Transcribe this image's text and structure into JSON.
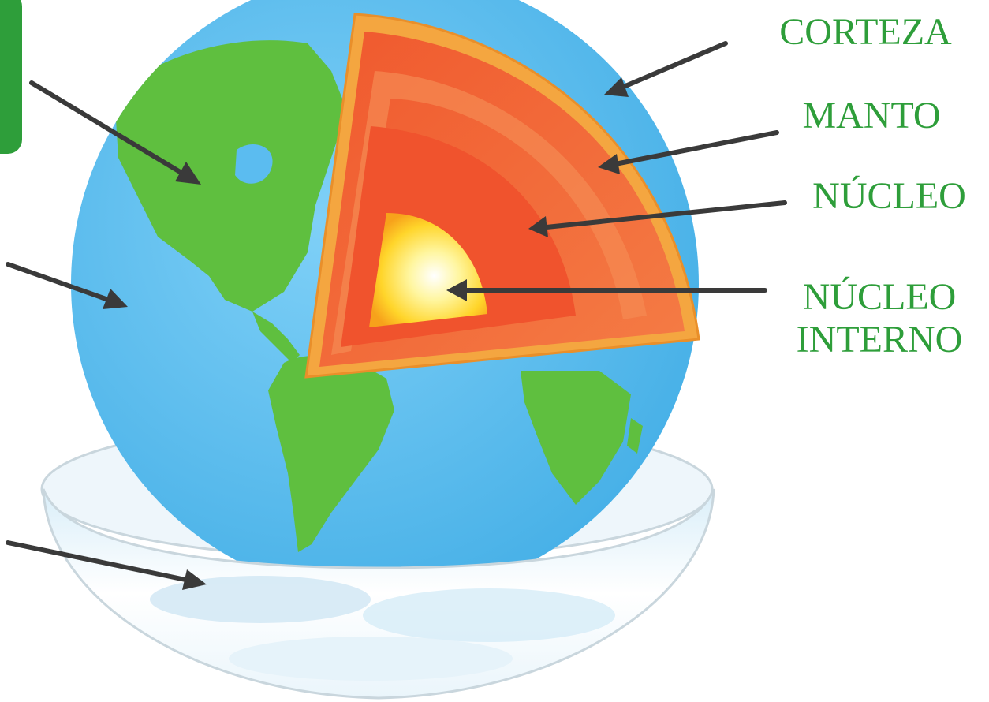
{
  "labels": {
    "crust": "CORTEZA",
    "mantle": "MANTO",
    "core": "NÚCLEO",
    "inner_core_line1": "NÚCLEO",
    "inner_core_line2": "INTERNO"
  },
  "colors": {
    "label_text": "#2e9e3a",
    "ocean": "#5bbcf0",
    "land": "#5fbf3f",
    "crust": "#f4a640",
    "mantle": "#f26a3a",
    "outer_core": "#f0532d",
    "inner_core": "#ffe45a",
    "arrow": "#3a3a3a"
  }
}
